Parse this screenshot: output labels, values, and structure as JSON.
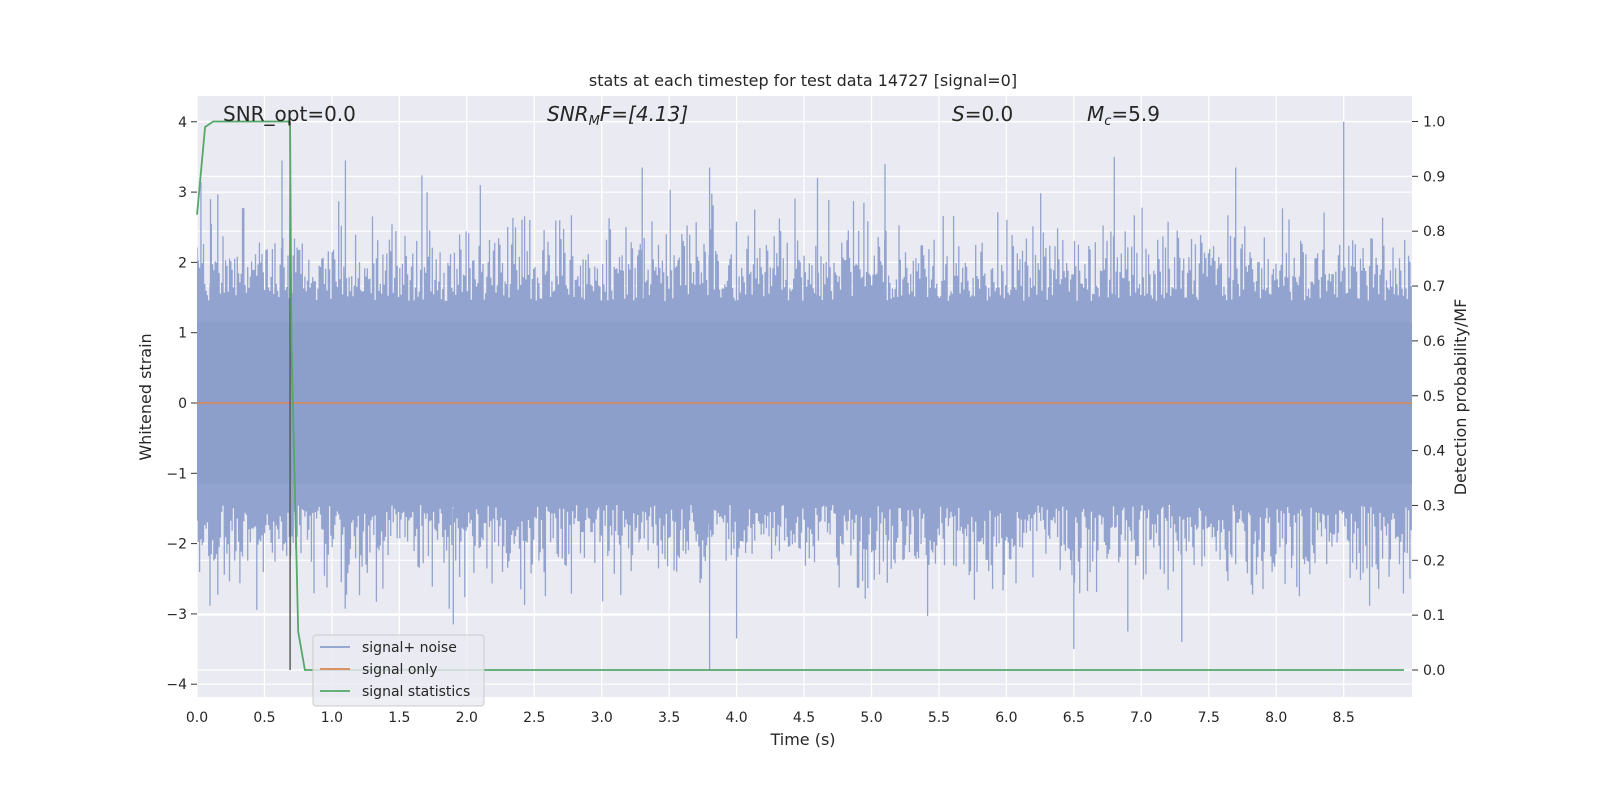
{
  "chart_data": {
    "type": "line",
    "title": "stats at each timestep for test data 14727 [signal=0]",
    "xlabel": "Time (s)",
    "ylabel": "Whitened strain",
    "y2label": "Detection probability/MF",
    "xlim": [
      0.0,
      9.0
    ],
    "ylim": [
      -4.2,
      4.4
    ],
    "y2lim": [
      -0.05,
      1.05
    ],
    "xticks": [
      "0.0",
      "0.5",
      "1.0",
      "1.5",
      "2.0",
      "2.5",
      "3.0",
      "3.5",
      "4.0",
      "4.5",
      "5.0",
      "5.5",
      "6.0",
      "6.5",
      "7.0",
      "7.5",
      "8.0",
      "8.5"
    ],
    "yticks": [
      "4",
      "3",
      "2",
      "1",
      "0",
      "−1",
      "−2",
      "−3",
      "−4"
    ],
    "y2ticks": [
      "1.0",
      "0.9",
      "0.8",
      "0.7",
      "0.6",
      "0.5",
      "0.4",
      "0.3",
      "0.2",
      "0.1",
      "0.0"
    ],
    "grid": true,
    "legend_position": "lower-left",
    "annotations": {
      "snr_opt": "SNR_opt=0.0",
      "snr_mf_base": "SNR",
      "snr_mf_sub": "M",
      "snr_mf_rest": "F=[4.13]",
      "s_italic": "S",
      "s_rest": "=0.0",
      "mc_italic": "M",
      "mc_sub": "c",
      "mc_rest": "=5.9"
    },
    "vline_x": 0.69,
    "series": [
      {
        "name": "signal+ noise",
        "color": "#8c9fcb",
        "axis": "left",
        "description_values": "dense whitened noise, roughly -3.8 to 4.0",
        "peaks": [
          [
            0.1,
            2.9
          ],
          [
            0.63,
            3.45
          ],
          [
            1.1,
            3.45
          ],
          [
            2.1,
            3.1
          ],
          [
            3.3,
            3.35
          ],
          [
            3.8,
            3.35
          ],
          [
            4.6,
            3.2
          ],
          [
            5.1,
            3.4
          ],
          [
            6.8,
            3.5
          ],
          [
            7.7,
            3.35
          ],
          [
            8.5,
            4.0
          ]
        ],
        "troughs": [
          [
            1.9,
            -3.15
          ],
          [
            3.8,
            -3.8
          ],
          [
            4.0,
            -3.35
          ],
          [
            6.5,
            -3.5
          ],
          [
            6.9,
            -3.25
          ],
          [
            7.3,
            -3.4
          ]
        ]
      },
      {
        "name": "signal only",
        "color": "#dd8452",
        "axis": "left",
        "x": [
          0.0,
          9.0
        ],
        "y": [
          0.0,
          0.0
        ]
      },
      {
        "name": "signal statistics",
        "color": "#55a868",
        "axis": "right",
        "x": [
          0.0,
          0.06,
          0.12,
          0.2,
          0.5,
          0.68,
          0.69,
          0.7,
          0.75,
          0.8,
          0.9,
          9.0
        ],
        "y": [
          0.83,
          0.99,
          1.0,
          1.0,
          1.0,
          1.0,
          0.99,
          0.6,
          0.07,
          0.0,
          0.0,
          0.0
        ]
      }
    ]
  }
}
